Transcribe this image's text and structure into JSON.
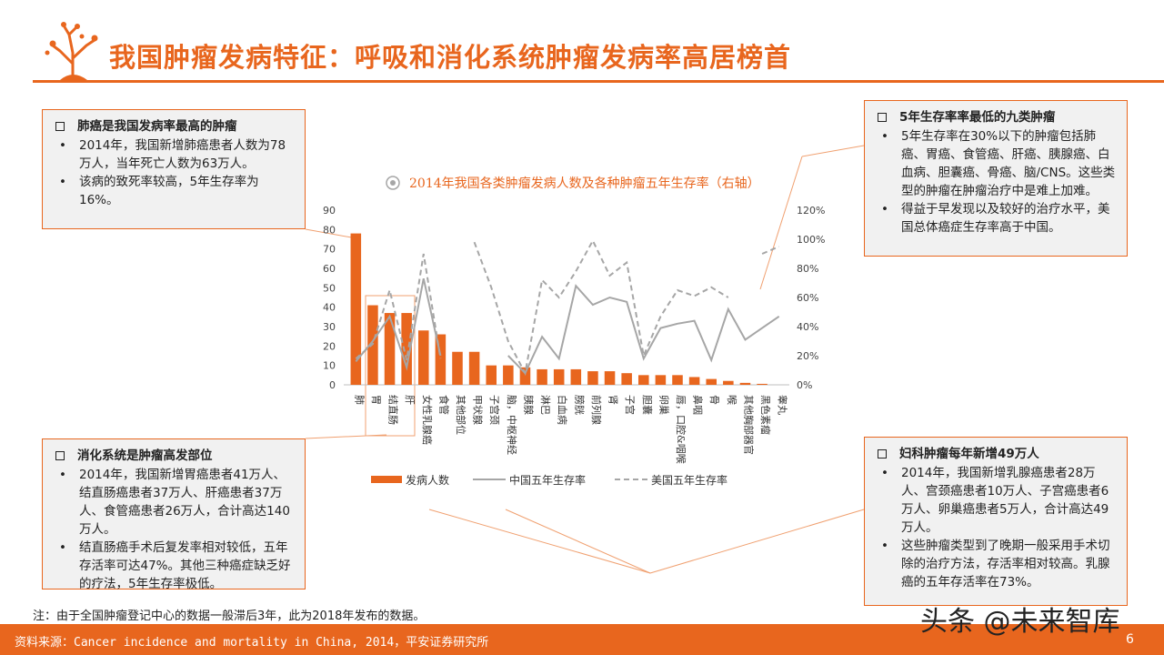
{
  "header": {
    "title": "我国肿瘤发病特征：呼吸和消化系统肿瘤发病率高居榜首"
  },
  "boxes": {
    "lung": {
      "heading": "肺癌是我国发病率最高的肿瘤",
      "bullets": [
        "2014年，我国新增肺癌患者人数为78万人，当年死亡人数为63万人。",
        "该病的致死率较高，5年生存率为16%。"
      ]
    },
    "digestive": {
      "heading": "消化系统是肿瘤高发部位",
      "bullets": [
        "2014年，我国新增胃癌患者41万人、结直肠癌患者37万人、肝癌患者37万人、食管癌患者26万人，合计高达140万人。",
        "结直肠癌手术后复发率相对较低，五年存活率可达47%。其他三种癌症缺乏好的疗法，5年生存率极低。"
      ]
    },
    "survival": {
      "heading": "5年生存率率最低的九类肿瘤",
      "bullets": [
        "5年生存率在30%以下的肿瘤包括肺癌、胃癌、食管癌、肝癌、胰腺癌、白血病、胆囊癌、骨癌、脑/CNS。这些类型的肿瘤在肿瘤治疗中是难上加难。",
        "得益于早发现以及较好的治疗水平，美国总体癌症生存率高于中国。"
      ]
    },
    "gyn": {
      "heading": "妇科肿瘤每年新增49万人",
      "bullets": [
        "2014年，我国新增乳腺癌患者28万人、宫颈癌患者10万人、子宫癌患者6万人、卵巢癌患者5万人，合计高达49万人。",
        "这些肿瘤类型到了晚期一般采用手术切除的治疗方法，存活率相对较高。乳腺癌的五年存活率在73%。"
      ]
    }
  },
  "note": "注：由于全国肿瘤登记中心的数据一般滞后3年，此为2018年发布的数据。",
  "footer": {
    "source": "资料来源：Cancer incidence and mortality in China, 2014，平安证券研究所",
    "page_number": "6"
  },
  "watermark": "头条 @未来智库",
  "colors": {
    "accent": "#e8661e",
    "china_line": "#a6a6a6",
    "us_line": "#a6a6a6",
    "box_bg": "#f1f1f1"
  },
  "chart_data": {
    "type": "bar",
    "title": "2014年我国各类肿瘤发病人数及各种肿瘤五年生存率（右轴）",
    "categories": [
      "肺",
      "胃",
      "结直肠",
      "肝",
      "女性乳腺癌",
      "食管",
      "其他部位",
      "甲状腺",
      "子宫颈",
      "脑，中枢神经",
      "胰腺",
      "淋巴",
      "白血病",
      "膀胱",
      "前列腺",
      "肾",
      "子宫",
      "胆囊",
      "卵巢",
      "唇，口腔&咽喉",
      "鼻咽",
      "骨",
      "喉",
      "其他胸部器官",
      "黑色素瘤",
      "睾丸"
    ],
    "y_left": {
      "min": 0,
      "max": 90,
      "ticks": [
        0,
        10,
        20,
        30,
        40,
        50,
        60,
        70,
        80,
        90
      ]
    },
    "y_right": {
      "min": 0,
      "max": 120,
      "ticks": [
        "0%",
        "20%",
        "40%",
        "60%",
        "80%",
        "100%",
        "120%"
      ]
    },
    "series": [
      {
        "name": "发病人数",
        "kind": "bar",
        "axis": "left",
        "values": [
          78,
          41,
          37,
          37,
          28,
          26,
          17,
          17,
          10,
          10,
          9,
          8,
          8,
          8,
          7,
          7,
          6,
          5,
          5,
          5,
          4,
          3,
          2,
          1,
          0.5,
          0
        ]
      },
      {
        "name": "中国五年生存率",
        "kind": "line",
        "axis": "right",
        "values": [
          16,
          30,
          47,
          12,
          73,
          20,
          null,
          67,
          null,
          20,
          8,
          33,
          18,
          68,
          55,
          60,
          57,
          18,
          39,
          42,
          44,
          17,
          52,
          31,
          39,
          47
        ]
      },
      {
        "name": "美国五年生存率",
        "kind": "line-dashed",
        "axis": "right",
        "values": [
          18,
          28,
          65,
          17,
          90,
          18,
          null,
          98,
          67,
          30,
          8,
          72,
          60,
          78,
          99,
          75,
          84,
          20,
          47,
          65,
          61,
          67,
          60,
          null,
          90,
          95
        ]
      }
    ],
    "legend_position": "bottom"
  }
}
